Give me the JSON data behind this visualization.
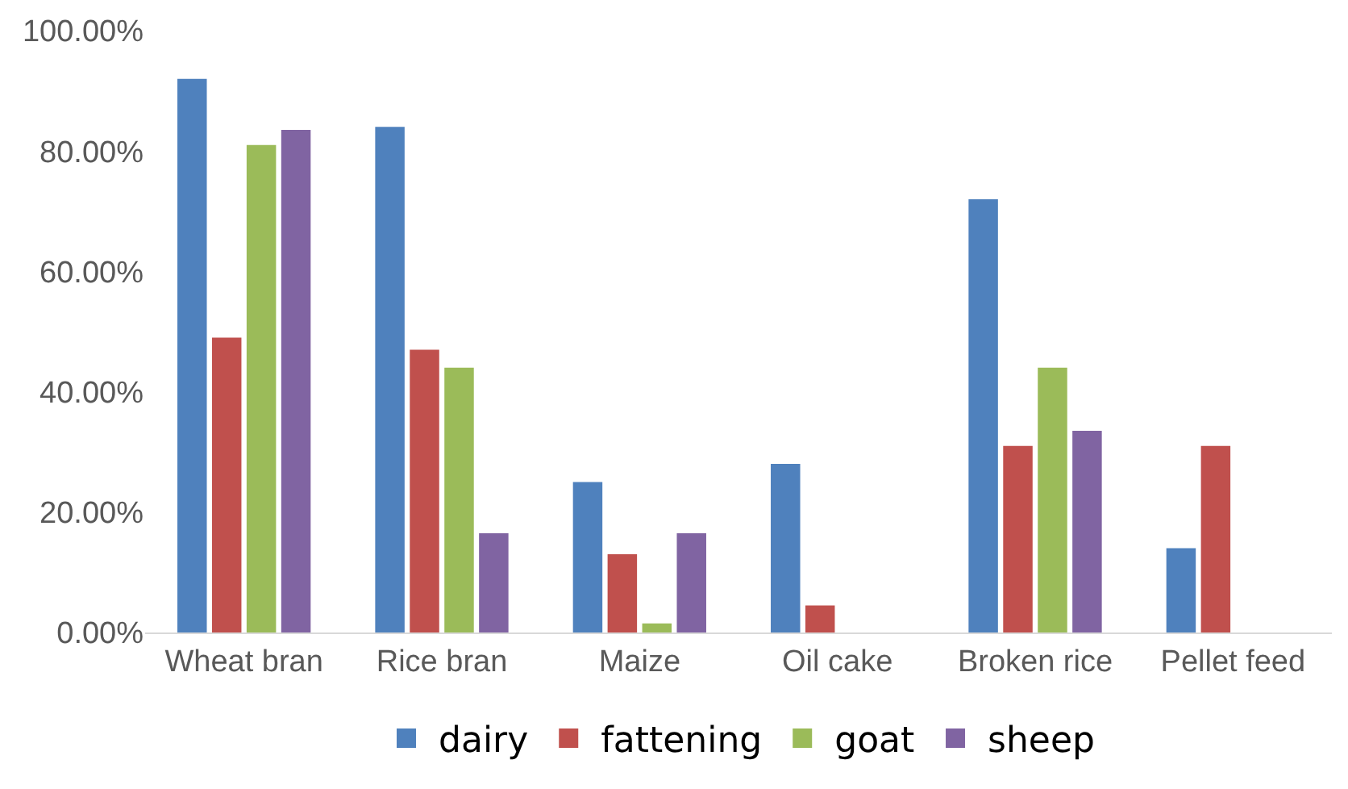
{
  "chart_data": {
    "type": "bar",
    "categories": [
      "Wheat bran",
      "Rice bran",
      "Maize",
      "Oil cake",
      "Broken rice",
      "Pellet feed"
    ],
    "series": [
      {
        "name": "dairy",
        "color": "#4f81bd",
        "values": [
          92,
          84,
          25,
          28,
          72,
          14
        ]
      },
      {
        "name": "fattening",
        "color": "#c0504d",
        "values": [
          49,
          47,
          13,
          4.5,
          31,
          31
        ]
      },
      {
        "name": "goat",
        "color": "#9bbb59",
        "values": [
          81,
          44,
          1.5,
          0,
          44,
          0
        ]
      },
      {
        "name": "sheep",
        "color": "#8064a2",
        "values": [
          83.5,
          16.5,
          16.5,
          0,
          33.5,
          0
        ]
      }
    ],
    "ylim": [
      0,
      100
    ],
    "yticks": [
      {
        "value": 0,
        "label": "0.00%"
      },
      {
        "value": 20,
        "label": "20.00%"
      },
      {
        "value": 40,
        "label": "40.00%"
      },
      {
        "value": 60,
        "label": "60.00%"
      },
      {
        "value": 80,
        "label": "80.00%"
      },
      {
        "value": 100,
        "label": "100.00%"
      }
    ],
    "grid": false,
    "legend": "bottom"
  }
}
